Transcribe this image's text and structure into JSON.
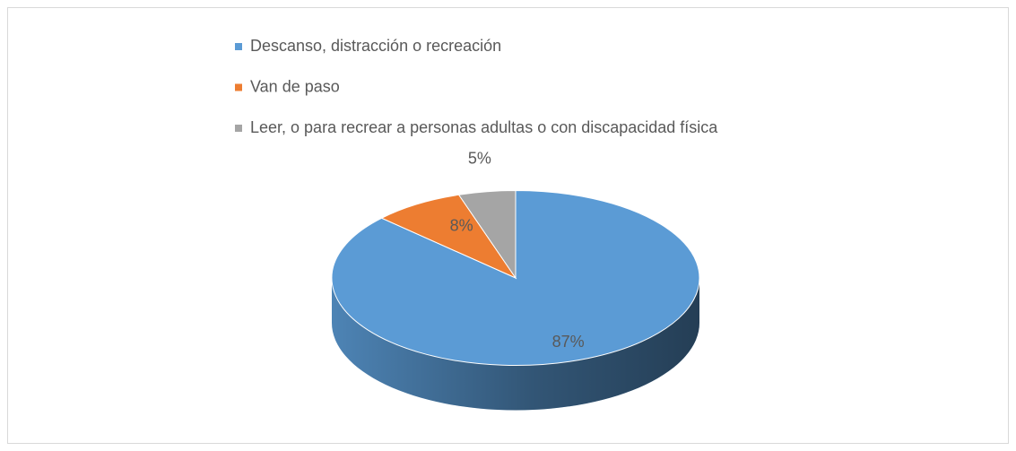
{
  "chart_data": {
    "type": "pie",
    "categories": [
      "Descanso, distracción o recreación",
      "Van de paso",
      "Leer, o para recrear a personas adultas o con discapacidad física"
    ],
    "values": [
      87,
      8,
      5
    ],
    "value_labels": [
      "87%",
      "8%",
      "5%"
    ],
    "colors": [
      "#5b9bd5",
      "#ed7d31",
      "#a5a5a5"
    ],
    "legend": "top"
  }
}
